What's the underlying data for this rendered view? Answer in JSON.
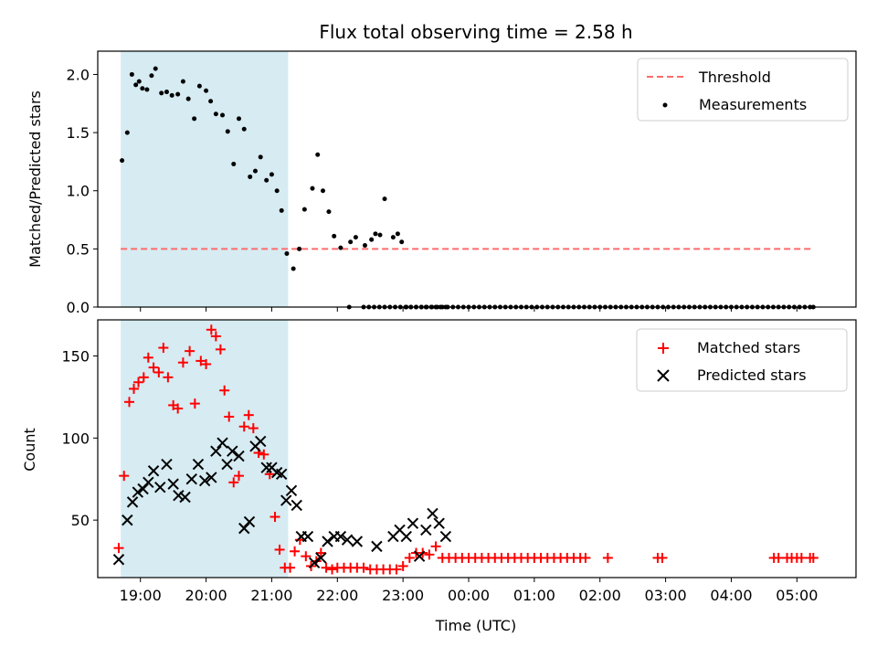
{
  "title": "Flux total observing time = 2.58 h",
  "chart_data": [
    {
      "type": "scatter",
      "ylabel": "Matched/Predicted stars",
      "xlim": [
        18.35,
        29.9
      ],
      "ylim": [
        0,
        2.2
      ],
      "yticks": [
        0.0,
        0.5,
        1.0,
        1.5,
        2.0
      ],
      "ytick_labels": [
        "0.0",
        "0.5",
        "1.0",
        "1.5",
        "2.0"
      ],
      "shaded_span": [
        18.7,
        21.25
      ],
      "shaded_color": "#add8e6",
      "legend_position": "top-right",
      "threshold": {
        "name": "Threshold",
        "y": 0.5,
        "x": [
          18.7,
          29.25
        ],
        "color": "#ff6b6b",
        "style": "dashed"
      },
      "series": [
        {
          "name": "Measurements",
          "color": "#000000",
          "x": [
            18.72,
            18.8,
            18.87,
            18.93,
            18.98,
            19.03,
            19.1,
            19.17,
            19.23,
            19.32,
            19.4,
            19.48,
            19.57,
            19.65,
            19.73,
            19.82,
            19.9,
            20.0,
            20.07,
            20.15,
            20.25,
            20.33,
            20.42,
            20.5,
            20.58,
            20.67,
            20.75,
            20.83,
            20.92,
            21.0,
            21.08,
            21.15,
            21.23,
            21.33,
            21.42,
            21.5,
            21.62,
            21.7,
            21.78,
            21.87,
            21.95,
            22.05,
            22.2,
            22.28,
            22.42,
            22.52,
            22.58,
            22.65,
            22.72,
            22.85,
            22.92,
            22.98,
            23.05,
            23.12,
            23.2,
            23.28,
            23.35,
            23.43,
            23.5,
            23.57,
            23.65
          ],
          "y": [
            1.26,
            1.5,
            2.0,
            1.91,
            1.94,
            1.88,
            1.87,
            1.99,
            2.05,
            1.84,
            1.85,
            1.82,
            1.83,
            1.94,
            1.79,
            1.62,
            1.9,
            1.86,
            1.77,
            1.66,
            1.65,
            1.51,
            1.23,
            1.62,
            1.53,
            1.12,
            1.17,
            1.29,
            1.09,
            1.14,
            1.0,
            0.83,
            0.46,
            0.33,
            0.5,
            0.84,
            1.02,
            1.31,
            1.0,
            0.82,
            0.61,
            0.51,
            0.56,
            0.6,
            0.53,
            0.58,
            0.63,
            0.62,
            0.93,
            0.6,
            0.63,
            0.56,
            0.0,
            0.0,
            0.0,
            0.0,
            0.0,
            0.0,
            0.0,
            0.0,
            0.0
          ]
        }
      ],
      "zeros_x": [
        22.18,
        22.4,
        22.48,
        22.56,
        22.64,
        22.72,
        22.8,
        22.88,
        22.96,
        23.04,
        23.12,
        23.2,
        23.28,
        23.36,
        23.44,
        23.52,
        23.6,
        23.68,
        23.76,
        23.84,
        23.92,
        24.0,
        24.08,
        24.16,
        24.24,
        24.32,
        24.4,
        24.48,
        24.56,
        24.64,
        24.72,
        24.8,
        24.88,
        24.96,
        25.04,
        25.12,
        25.2,
        25.28,
        25.36,
        25.44,
        25.52,
        25.6,
        25.68,
        25.76,
        25.84,
        25.92,
        26.0,
        26.08,
        26.16,
        26.24,
        26.32,
        26.4,
        26.48,
        26.56,
        26.64,
        26.72,
        26.8,
        26.88,
        26.96,
        27.04,
        27.12,
        27.2,
        27.28,
        27.36,
        27.44,
        27.52,
        27.6,
        27.68,
        27.76,
        27.84,
        27.92,
        28.0,
        28.08,
        28.16,
        28.24,
        28.32,
        28.4,
        28.48,
        28.56,
        28.64,
        28.72,
        28.8,
        28.88,
        28.96,
        29.04,
        29.12,
        29.2,
        29.25
      ]
    },
    {
      "type": "scatter",
      "xlabel": "Time (UTC)",
      "ylabel": "Count",
      "xlim": [
        18.35,
        29.9
      ],
      "ylim": [
        15,
        172
      ],
      "yticks": [
        50,
        100,
        150
      ],
      "ytick_labels": [
        "50",
        "100",
        "150"
      ],
      "xticks": [
        19,
        20,
        21,
        22,
        23,
        24,
        25,
        26,
        27,
        28,
        29
      ],
      "xtick_labels": [
        "19:00",
        "20:00",
        "21:00",
        "22:00",
        "23:00",
        "00:00",
        "01:00",
        "02:00",
        "03:00",
        "04:00",
        "05:00"
      ],
      "shaded_span": [
        18.7,
        21.25
      ],
      "shaded_color": "#add8e6",
      "legend_position": "top-right",
      "series": [
        {
          "name": "Matched stars",
          "marker": "plus",
          "color": "#ff0000",
          "x": [
            18.67,
            18.75,
            18.83,
            18.9,
            18.97,
            19.05,
            19.12,
            19.2,
            19.28,
            19.35,
            19.42,
            19.5,
            19.57,
            19.65,
            19.75,
            19.83,
            19.92,
            20.0,
            20.08,
            20.15,
            20.22,
            20.28,
            20.35,
            20.42,
            20.5,
            20.58,
            20.65,
            20.72,
            20.8,
            20.88,
            20.97,
            21.05,
            21.12,
            21.2,
            21.28,
            21.35,
            21.43,
            21.52,
            21.6,
            21.68,
            21.75,
            21.83,
            21.92,
            22.0,
            22.1,
            22.2,
            22.3,
            22.4,
            22.5,
            22.6,
            22.7,
            22.8,
            22.9,
            23.0,
            23.1,
            23.2,
            23.3,
            23.4,
            23.5,
            23.6,
            23.7,
            23.8,
            23.9,
            24.0,
            24.1,
            24.2,
            24.3,
            24.4,
            24.5,
            24.6,
            24.7,
            24.8,
            24.9,
            25.0,
            25.1,
            25.2,
            25.3,
            25.4,
            25.5,
            25.6,
            25.7,
            25.78,
            26.12,
            26.88,
            26.95,
            28.65,
            28.72,
            28.85,
            28.92,
            29.0,
            29.07,
            29.2,
            29.25
          ],
          "y": [
            33,
            77,
            122,
            130,
            134,
            137,
            149,
            143,
            140,
            155,
            137,
            120,
            118,
            146,
            153,
            121,
            147,
            145,
            166,
            162,
            154,
            129,
            113,
            73,
            77,
            107,
            114,
            106,
            91,
            90,
            78,
            52,
            32,
            21,
            21,
            31,
            38,
            28,
            22,
            25,
            30,
            21,
            20,
            21,
            21,
            21,
            21,
            21,
            20,
            20,
            20,
            20,
            20,
            22,
            27,
            30,
            30,
            29,
            34,
            27,
            27,
            27,
            27,
            27,
            27,
            27,
            27,
            27,
            27,
            27,
            27,
            27,
            27,
            27,
            27,
            27,
            27,
            27,
            27,
            27,
            27,
            27,
            27,
            27,
            27,
            27,
            27,
            27,
            27,
            27,
            27,
            27,
            27
          ]
        },
        {
          "name": "Predicted stars",
          "marker": "x",
          "color": "#000000",
          "x": [
            18.67,
            18.8,
            18.88,
            18.96,
            19.04,
            19.12,
            19.2,
            19.3,
            19.4,
            19.5,
            19.58,
            19.68,
            19.78,
            19.88,
            19.98,
            20.08,
            20.15,
            20.25,
            20.32,
            20.4,
            20.5,
            20.58,
            20.66,
            20.75,
            20.83,
            20.92,
            21.0,
            21.08,
            21.15,
            21.22,
            21.3,
            21.38,
            21.45,
            21.55,
            21.65,
            21.75,
            21.85,
            21.95,
            22.05,
            22.15,
            22.3,
            22.6,
            22.85,
            22.95,
            23.05,
            23.15,
            23.25,
            23.35,
            23.45,
            23.55,
            23.65
          ],
          "y": [
            26,
            50,
            61,
            67,
            69,
            73,
            80,
            70,
            84,
            72,
            65,
            64,
            75,
            84,
            74,
            76,
            92,
            97,
            84,
            92,
            89,
            45,
            49,
            95,
            98,
            82,
            82,
            79,
            78,
            62,
            68,
            59,
            40,
            40,
            24,
            27,
            37,
            40,
            40,
            38,
            37,
            34,
            40,
            44,
            40,
            48,
            28,
            44,
            54,
            48,
            40
          ]
        }
      ]
    }
  ]
}
